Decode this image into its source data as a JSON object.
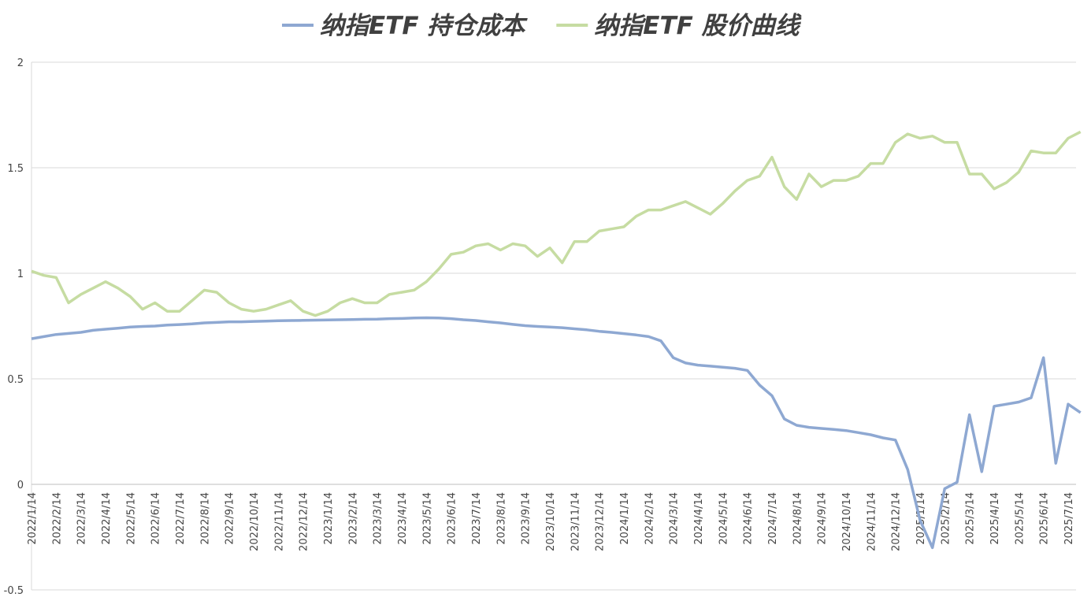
{
  "chart_data": {
    "type": "line",
    "categories": [
      "2022/1/14",
      null,
      "2022/2/14",
      null,
      "2022/3/14",
      null,
      "2022/4/14",
      null,
      "2022/5/14",
      null,
      "2022/6/14",
      null,
      "2022/7/14",
      null,
      "2022/8/14",
      null,
      "2022/9/14",
      null,
      "2022/10/14",
      null,
      "2022/11/14",
      null,
      "2022/12/14",
      null,
      "2023/1/14",
      null,
      "2023/2/14",
      null,
      "2023/3/14",
      null,
      "2023/4/14",
      null,
      "2023/5/14",
      null,
      "2023/6/14",
      null,
      "2023/7/14",
      null,
      "2023/8/14",
      null,
      "2023/9/14",
      null,
      "2023/10/14",
      null,
      "2023/11/14",
      null,
      "2023/12/14",
      null,
      "2024/1/14",
      null,
      "2024/2/14",
      null,
      "2024/3/14",
      null,
      "2024/4/14",
      null,
      "2024/5/14",
      null,
      "2024/6/14",
      null,
      "2024/7/14",
      null,
      "2024/8/14",
      null,
      "2024/9/14",
      null,
      "2024/10/14",
      null,
      "2024/11/14",
      null,
      "2024/12/14",
      null,
      "2025/1/14",
      null,
      "2025/2/14",
      null,
      "2025/3/14",
      null,
      "2025/4/14",
      null,
      "2025/5/14",
      null,
      "2025/6/14",
      null,
      "2025/7/14",
      null
    ],
    "series": [
      {
        "name": "纳指ETF 持仓成本",
        "color": "#8ea8d2",
        "values": [
          0.69,
          0.7,
          0.71,
          0.715,
          0.72,
          0.73,
          0.735,
          0.74,
          0.745,
          0.748,
          0.75,
          0.755,
          0.757,
          0.76,
          0.765,
          0.767,
          0.77,
          0.77,
          0.772,
          0.773,
          0.775,
          0.776,
          0.777,
          0.778,
          0.779,
          0.78,
          0.781,
          0.782,
          0.783,
          0.785,
          0.786,
          0.788,
          0.789,
          0.788,
          0.785,
          0.78,
          0.776,
          0.77,
          0.765,
          0.758,
          0.752,
          0.748,
          0.745,
          0.742,
          0.737,
          0.732,
          0.725,
          0.72,
          0.714,
          0.708,
          0.7,
          0.68,
          0.6,
          0.575,
          0.565,
          0.56,
          0.555,
          0.55,
          0.54,
          0.47,
          0.42,
          0.31,
          0.28,
          0.27,
          0.265,
          0.26,
          0.255,
          0.245,
          0.235,
          0.22,
          0.21,
          0.07,
          -0.17,
          -0.3,
          -0.02,
          0.01,
          0.33,
          0.06,
          0.37,
          0.38,
          0.39,
          0.41,
          0.6,
          0.1,
          0.38,
          0.34
        ]
      },
      {
        "name": "纳指ETF 股价曲线",
        "color": "#c6dca2",
        "values": [
          1.01,
          0.99,
          0.98,
          0.86,
          0.9,
          0.93,
          0.96,
          0.93,
          0.89,
          0.83,
          0.86,
          0.82,
          0.82,
          0.87,
          0.92,
          0.91,
          0.86,
          0.83,
          0.82,
          0.83,
          0.85,
          0.87,
          0.82,
          0.8,
          0.82,
          0.86,
          0.88,
          0.86,
          0.86,
          0.9,
          0.91,
          0.92,
          0.96,
          1.02,
          1.09,
          1.1,
          1.13,
          1.14,
          1.11,
          1.14,
          1.13,
          1.08,
          1.12,
          1.05,
          1.15,
          1.15,
          1.2,
          1.21,
          1.22,
          1.27,
          1.3,
          1.3,
          1.32,
          1.34,
          1.31,
          1.28,
          1.33,
          1.39,
          1.44,
          1.46,
          1.55,
          1.41,
          1.35,
          1.47,
          1.41,
          1.44,
          1.44,
          1.46,
          1.52,
          1.52,
          1.62,
          1.66,
          1.64,
          1.65,
          1.62,
          1.62,
          1.47,
          1.47,
          1.4,
          1.43,
          1.48,
          1.58,
          1.57,
          1.57,
          1.64,
          1.67
        ]
      }
    ],
    "ylim": [
      -0.5,
      2
    ],
    "yticks": [
      -0.5,
      0,
      0.5,
      1,
      1.5,
      2
    ],
    "grid": true,
    "legend": "top"
  }
}
